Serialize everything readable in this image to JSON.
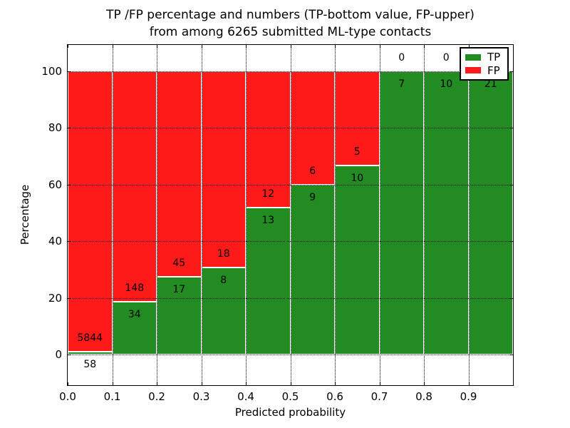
{
  "header": {
    "title_line1": "TP /FP percentage and numbers (TP-bottom value, FP-upper)",
    "title_line2": "from among 6265 submitted ML-type contacts"
  },
  "chart_data": {
    "type": "bar",
    "stacked": true,
    "title": "TP /FP percentage and numbers (TP-bottom value, FP-upper)\nfrom among 6265 submitted ML-type contacts",
    "xlabel": "Predicted probability",
    "ylabel": "Percentage",
    "xlim": [
      0.0,
      1.0
    ],
    "ylim": [
      -10.8,
      109.3
    ],
    "bin_width": 0.1,
    "grid": true,
    "x_ticks": [
      0.0,
      0.1,
      0.2,
      0.3,
      0.4,
      0.5,
      0.6,
      0.7,
      0.8,
      0.9
    ],
    "x_tick_labels": [
      "0.0",
      "0.1",
      "0.2",
      "0.3",
      "0.4",
      "0.5",
      "0.6",
      "0.7",
      "0.8",
      "0.9"
    ],
    "y_ticks": [
      0,
      20,
      40,
      60,
      80,
      100
    ],
    "y_tick_labels": [
      "0",
      "20",
      "40",
      "60",
      "80",
      "100"
    ],
    "categories": [
      "0.0-0.1",
      "0.1-0.2",
      "0.2-0.3",
      "0.3-0.4",
      "0.4-0.5",
      "0.5-0.6",
      "0.6-0.7",
      "0.7-0.8",
      "0.8-0.9",
      "0.9-1.0"
    ],
    "series": [
      {
        "name": "TP",
        "color": "#228b22",
        "values": [
          58,
          34,
          17,
          8,
          13,
          9,
          10,
          7,
          10,
          21
        ]
      },
      {
        "name": "FP",
        "color": "#ff1a1a",
        "values": [
          5844,
          148,
          45,
          18,
          12,
          6,
          5,
          0,
          0,
          0
        ]
      }
    ],
    "total_contacts": 6265,
    "legend": {
      "position": "upper right",
      "entries": [
        {
          "label": "TP",
          "color": "#228b22"
        },
        {
          "label": "FP",
          "color": "#ff1a1a"
        }
      ]
    }
  }
}
